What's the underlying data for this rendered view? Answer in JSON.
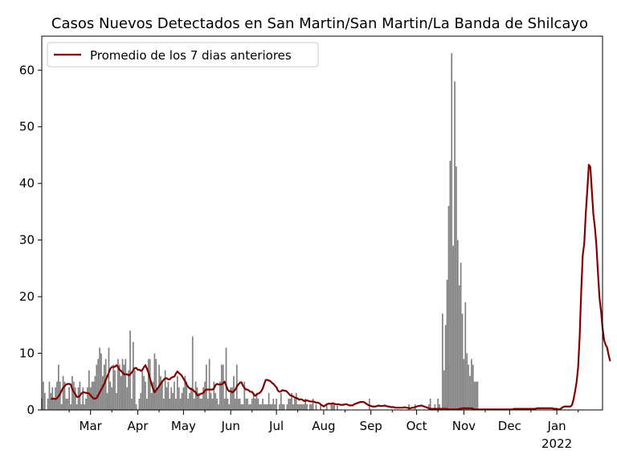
{
  "chart_data": {
    "type": "bar",
    "title": "Casos Nuevos Detectados en San Martin/San Martin/La Banda de Shilcayo",
    "xlabel": "",
    "ylabel": "",
    "x_start": "2021-01-28",
    "x_end": "2022-01-31",
    "ylim": [
      0,
      66
    ],
    "yticks": [
      0,
      10,
      20,
      30,
      40,
      50,
      60
    ],
    "xticks": [
      {
        "date": "2021-03-01",
        "label": "Mar"
      },
      {
        "date": "2021-04-01",
        "label": "Apr"
      },
      {
        "date": "2021-05-01",
        "label": "May"
      },
      {
        "date": "2021-06-01",
        "label": "Jun"
      },
      {
        "date": "2021-07-01",
        "label": "Jul"
      },
      {
        "date": "2021-08-01",
        "label": "Aug"
      },
      {
        "date": "2021-09-01",
        "label": "Sep"
      },
      {
        "date": "2021-10-01",
        "label": "Oct"
      },
      {
        "date": "2021-11-01",
        "label": "Nov"
      },
      {
        "date": "2021-12-01",
        "label": "Dec"
      },
      {
        "date": "2022-01-01",
        "label": "Jan",
        "sublabel": "2022"
      }
    ],
    "grid": false,
    "legend": {
      "position": "top-left",
      "entries": [
        "Promedio de los 7 dias anteriores"
      ]
    },
    "colors": {
      "bars": "#808080",
      "line": "#800000"
    },
    "series": [
      {
        "kind": "bar",
        "start_date": "2021-01-28",
        "values": [
          2,
          5,
          3,
          0,
          2,
          5,
          3,
          4,
          2,
          4,
          5,
          8,
          5,
          1,
          6,
          5,
          2,
          2,
          4,
          1,
          6,
          5,
          4,
          1,
          4,
          5,
          1,
          4,
          1,
          2,
          4,
          7,
          4,
          5,
          5,
          6,
          8,
          9,
          11,
          10,
          6,
          8,
          9,
          3,
          11,
          5,
          4,
          8,
          7,
          3,
          9,
          8,
          6,
          9,
          8,
          9,
          4,
          7,
          14,
          2,
          12,
          7,
          1,
          0,
          2,
          3,
          7,
          6,
          5,
          2,
          9,
          9,
          3,
          5,
          10,
          9,
          4,
          8,
          6,
          5,
          2,
          7,
          4,
          5,
          2,
          4,
          3,
          5,
          2,
          6,
          4,
          2,
          3,
          4,
          6,
          5,
          2,
          3,
          4,
          13,
          2,
          5,
          4,
          3,
          2,
          2,
          4,
          5,
          8,
          2,
          9,
          3,
          2,
          5,
          3,
          2,
          1,
          5,
          8,
          8,
          2,
          11,
          2,
          1,
          4,
          4,
          6,
          2,
          8,
          2,
          2,
          1,
          1,
          5,
          2,
          2,
          1,
          1,
          2,
          3,
          2,
          3,
          2,
          1,
          1,
          2,
          1,
          1,
          1,
          3,
          1,
          1,
          2,
          1,
          2,
          0,
          1,
          3,
          1,
          1,
          0,
          1,
          2,
          2,
          3,
          1,
          2,
          3,
          1,
          1,
          1,
          1,
          1,
          2,
          1,
          0,
          1,
          1,
          2,
          0,
          1,
          0,
          0,
          1,
          0,
          0,
          0,
          1,
          0,
          0,
          1,
          1,
          1,
          0,
          1,
          0,
          0,
          0,
          0,
          0,
          0,
          0,
          0,
          0,
          0,
          0,
          0,
          0,
          0,
          0,
          0,
          0,
          0,
          0,
          0,
          2,
          0,
          0,
          0,
          0,
          0,
          0,
          0,
          0,
          0,
          0,
          0,
          0,
          0,
          0,
          0,
          0,
          0,
          0,
          0,
          0,
          0,
          0,
          0,
          0,
          0,
          1,
          0,
          0,
          0,
          1,
          0,
          0,
          0,
          0,
          0,
          0,
          0,
          0,
          1,
          2,
          0,
          0,
          1,
          0,
          2,
          1,
          0,
          17,
          7,
          15,
          23,
          36,
          44,
          63,
          29,
          58,
          43,
          30,
          22,
          26,
          17,
          9,
          19,
          10,
          8,
          6,
          9,
          8,
          5,
          5,
          5
        ]
      },
      {
        "kind": "line",
        "name": "Promedio de los 7 dias anteriores",
        "start_date": "2021-02-03",
        "values": [
          1.9,
          2,
          2,
          1.9,
          2.1,
          2.4,
          2.8,
          3.4,
          3.9,
          4.2,
          4.5,
          4.6,
          4.6,
          4.5,
          3.7,
          3.2,
          2.8,
          2.3,
          2.3,
          2.5,
          2.9,
          3.1,
          3.1,
          3,
          3,
          2.9,
          2.6,
          2.3,
          2,
          2,
          2.1,
          2.6,
          3.1,
          3.6,
          4.1,
          4.6,
          5.3,
          5.9,
          6.6,
          7.3,
          7.6,
          7.6,
          7.6,
          7.9,
          7.6,
          7.1,
          6.9,
          6.6,
          6.3,
          6.3,
          6.3,
          6.1,
          6.3,
          6.6,
          7,
          7.4,
          7.4,
          7.1,
          7.1,
          6.9,
          7.1,
          7.5,
          7.9,
          7.3,
          6.6,
          5.6,
          4.6,
          3.8,
          3.1,
          3.5,
          3.8,
          4.2,
          4.6,
          5,
          5.3,
          5.6,
          5.6,
          5.4,
          5.4,
          5.7,
          5.8,
          5.9,
          6.4,
          6.8,
          6.5,
          6.3,
          6,
          5.5,
          5.1,
          4.5,
          4.1,
          3.8,
          3.7,
          3.6,
          3.3,
          3.1,
          2.6,
          2.6,
          2.8,
          2.9,
          3,
          3.4,
          3.6,
          3.6,
          3.6,
          3.6,
          3.6,
          3.8,
          4.4,
          4.6,
          4.5,
          4.5,
          4.5,
          4.7,
          5,
          4.3,
          3.6,
          3.3,
          3.3,
          3.1,
          3.3,
          3.6,
          4.1,
          4.5,
          4.8,
          4.9,
          4.3,
          3.9,
          3.6,
          3.6,
          3.4,
          3.2,
          3.2,
          2.8,
          2.5,
          2.7,
          2.9,
          3,
          3.3,
          3.8,
          4.6,
          5.3,
          5.3,
          5.2,
          5.1,
          4.8,
          4.6,
          4.3,
          4,
          3.4,
          3.2,
          3.3,
          3.5,
          3.4,
          3.4,
          3.2,
          2.9,
          2.6,
          2.5,
          2.4,
          2.2,
          2.1,
          2,
          1.8,
          1.9,
          1.8,
          1.6,
          1.6,
          1.7,
          1.6,
          1.5,
          1.5,
          1.5,
          1.4,
          1.3,
          1.3,
          1.2,
          1,
          0.8,
          0.6,
          0.8,
          1,
          1.1,
          1.1,
          1.1,
          1.2,
          1.1,
          1,
          1,
          1,
          0.9,
          0.9,
          0.9,
          1,
          1,
          0.9,
          0.8,
          0.8,
          0.8,
          1,
          1.1,
          1.2,
          1.3,
          1.4,
          1.4,
          1.4,
          1.3,
          1.1,
          0.9,
          0.8,
          0.7,
          0.6,
          0.6,
          0.6,
          0.7,
          0.8,
          0.7,
          0.7,
          0.7,
          0.8,
          0.7,
          0.6,
          0.6,
          0.5,
          0.5,
          0.5,
          0.4,
          0.4,
          0.4,
          0.4,
          0.4,
          0.4,
          0.5,
          0.4,
          0.4,
          0.3,
          0.3,
          0.4,
          0.4,
          0.5,
          0.6,
          0.7,
          0.7,
          0.8,
          0.7,
          0.6,
          0.5,
          0.4,
          0.3,
          0.2,
          0.2,
          0.2,
          0.2,
          0.2,
          0.2,
          0.2,
          0.2,
          0.2,
          0.2,
          0.2,
          0.2,
          0.1,
          0.1,
          0.1,
          0.1,
          0.1,
          0.1,
          0.1,
          0.2,
          0.2,
          0.3,
          0.3,
          0.3,
          0.3,
          0.3,
          0.3,
          0.3,
          0.2,
          0.1,
          0.1,
          0.1,
          0.1,
          0.1,
          0.1,
          0.1,
          0.1,
          0.1,
          0.1,
          0.1,
          0.1,
          0.1,
          0.1,
          0.1,
          0.1,
          0.1,
          0.1,
          0.1,
          0.1,
          0.1,
          0.1,
          0.1,
          0.1,
          0.1,
          0.1,
          0.2,
          0.2,
          0.2,
          0.2,
          0.2,
          0.2,
          0.2,
          0.2,
          0.2,
          0.2,
          0.2,
          0.2,
          0.2,
          0.2,
          0.2,
          0.3,
          0.3,
          0.3,
          0.3,
          0.3,
          0.3,
          0.3,
          0.3,
          0.3,
          0.3,
          0.3,
          0.2,
          0.2,
          0.2,
          0.1,
          0.1,
          0.3,
          0.5,
          0.6,
          0.6,
          0.6,
          0.6,
          0.6,
          0.9,
          1.9,
          3.3,
          5,
          7.6,
          13,
          20.9,
          27.3,
          29.4,
          34.7,
          38.8,
          43.3,
          42.9,
          38.6,
          34.5,
          32.2,
          29,
          24.2,
          19.8,
          17.5,
          14.5,
          12.4,
          11.5,
          11,
          9.7,
          8.6
        ]
      }
    ]
  }
}
